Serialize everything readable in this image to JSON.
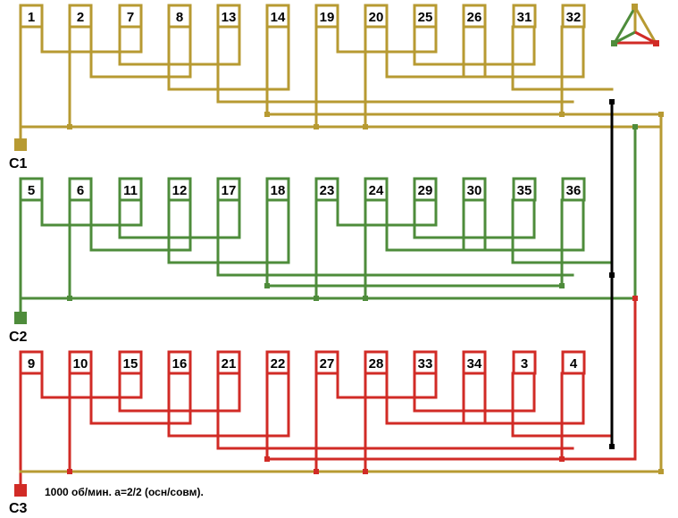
{
  "colors": {
    "phase1": "#b79a32",
    "phase2": "#4e8c3b",
    "phase3": "#d12b26",
    "star": "#000000"
  },
  "phases": [
    {
      "name": "C1",
      "color_key": "phase1",
      "coils": [
        "1",
        "2",
        "7",
        "8",
        "13",
        "14",
        "19",
        "20",
        "25",
        "26",
        "31",
        "32"
      ]
    },
    {
      "name": "C2",
      "color_key": "phase2",
      "coils": [
        "5",
        "6",
        "11",
        "12",
        "17",
        "18",
        "23",
        "24",
        "29",
        "30",
        "35",
        "36"
      ]
    },
    {
      "name": "C3",
      "color_key": "phase3",
      "coils": [
        "9",
        "10",
        "15",
        "16",
        "21",
        "22",
        "27",
        "28",
        "33",
        "34",
        "3",
        "4"
      ]
    }
  ],
  "caption": "1000 об/мин. a=2/2 (осн/совм).",
  "legend_icon": "phase-triangle-icon"
}
